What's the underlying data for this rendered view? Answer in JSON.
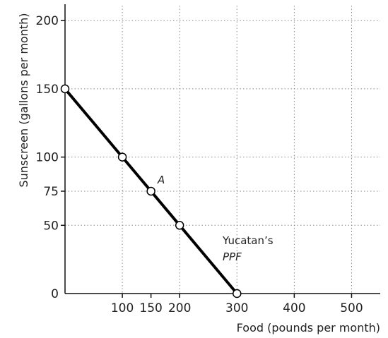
{
  "chart_data": {
    "type": "line",
    "xlabel": "Food (pounds per month)",
    "ylabel": "Sunscreen (gallons per month)",
    "xlim": [
      0,
      550
    ],
    "ylim": [
      0,
      212
    ],
    "x_ticks": [
      100,
      150,
      200,
      300,
      400,
      500
    ],
    "x_tick_labels": [
      "100",
      "150",
      "200",
      "300",
      "400",
      "500"
    ],
    "x_gridlines": [
      100,
      200,
      300,
      400,
      500
    ],
    "y_ticks": [
      0,
      50,
      75,
      100,
      150,
      200
    ],
    "y_tick_labels": [
      "0",
      "50",
      "75",
      "100",
      "150",
      "200"
    ],
    "y_gridlines": [
      50,
      75,
      100,
      150,
      200
    ],
    "grid": true,
    "series": [
      {
        "points": [
          {
            "x": 0,
            "y": 150
          },
          {
            "x": 100,
            "y": 100
          },
          {
            "x": 150,
            "y": 75
          },
          {
            "x": 200,
            "y": 50
          },
          {
            "x": 300,
            "y": 0
          }
        ]
      }
    ],
    "annotations": [
      {
        "text": "A",
        "x": 150,
        "y": 75
      },
      {
        "text": "Yucatan’s",
        "x": 300,
        "y": 50
      },
      {
        "text": "PPF",
        "x": 300,
        "y": 50
      }
    ],
    "colors": {
      "line": "#000000",
      "grid": "#888888",
      "marker_fill": "#ffffff"
    }
  }
}
